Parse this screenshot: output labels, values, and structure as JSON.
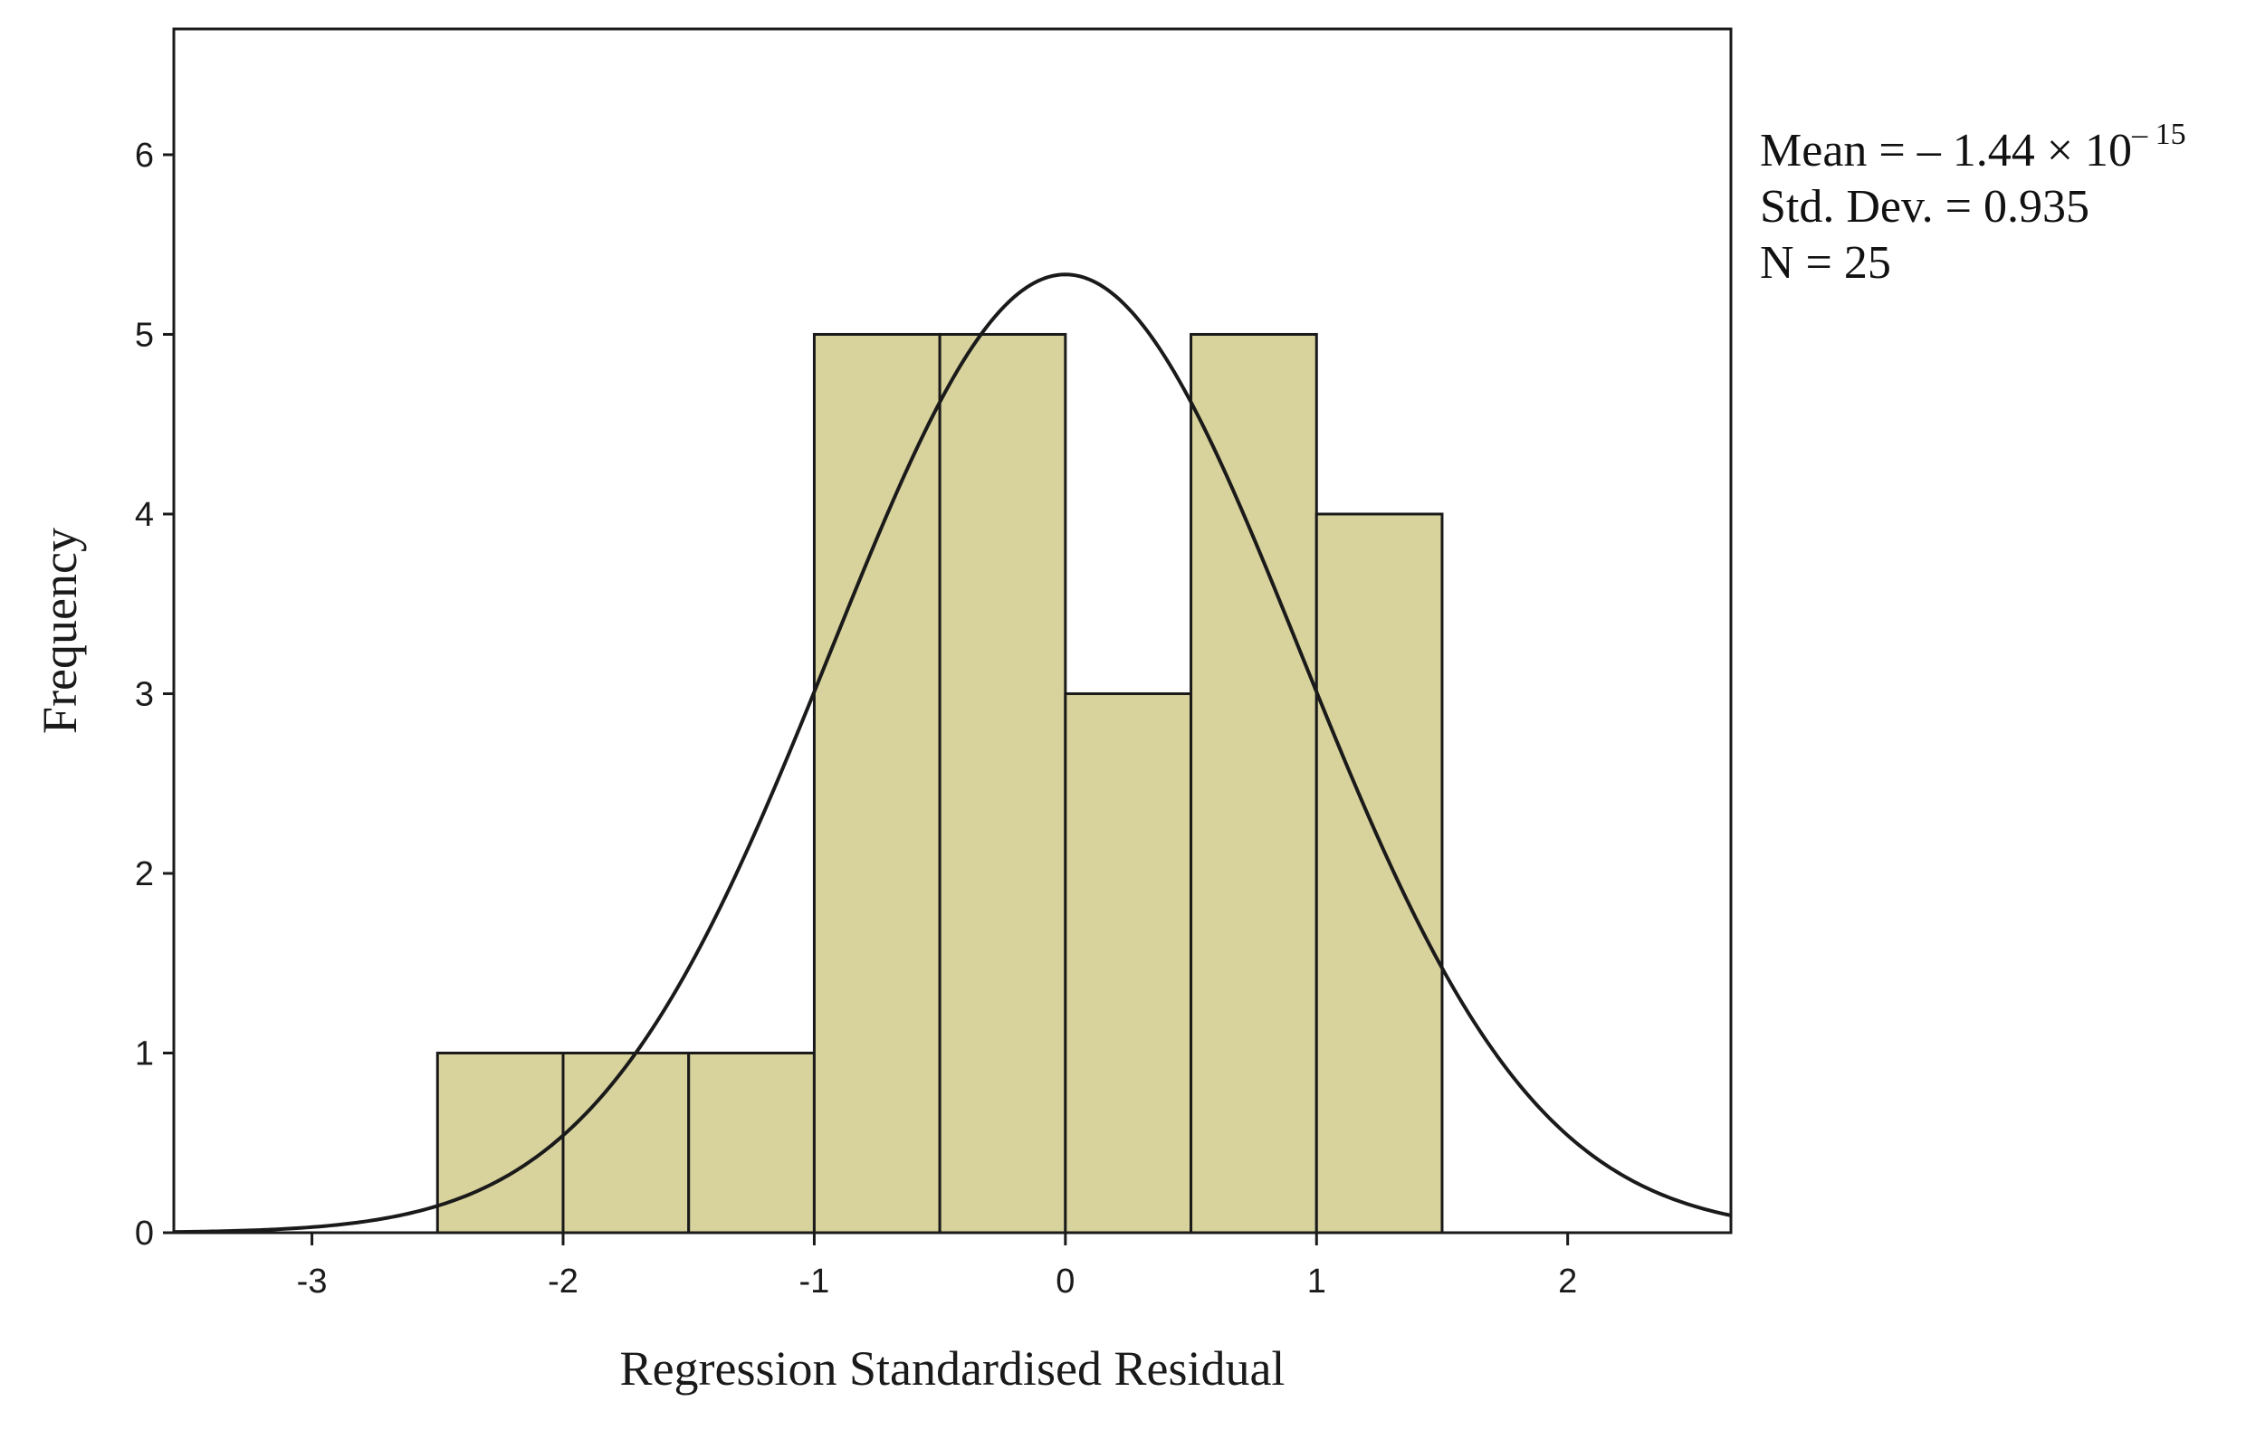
{
  "chart_data": {
    "type": "bar",
    "subtype": "histogram",
    "xlabel": "Regression Standardised Residual",
    "ylabel": "Frequency",
    "xlim": [
      -3.55,
      2.65
    ],
    "ylim": [
      0,
      6.7
    ],
    "xticks": [
      -3,
      -2,
      -1,
      0,
      1,
      2
    ],
    "yticks": [
      0,
      1,
      2,
      3,
      4,
      5,
      6
    ],
    "bins": [
      {
        "start": -2.5,
        "end": -2.0,
        "value": 1
      },
      {
        "start": -2.0,
        "end": -1.5,
        "value": 1
      },
      {
        "start": -1.5,
        "end": -1.0,
        "value": 1
      },
      {
        "start": -1.0,
        "end": -0.5,
        "value": 5
      },
      {
        "start": -0.5,
        "end": 0.0,
        "value": 5
      },
      {
        "start": 0.0,
        "end": 0.5,
        "value": 3
      },
      {
        "start": 0.5,
        "end": 1.0,
        "value": 5
      },
      {
        "start": 1.0,
        "end": 1.5,
        "value": 4
      }
    ],
    "bar_color": "#d8d29c",
    "bar_edge_color": "#1a1a1a",
    "normal_curve": {
      "mean": 0,
      "std_dev": 0.935,
      "n": 25,
      "bin_width": 0.5
    },
    "curve_color": "#1a1a1a"
  },
  "stats": {
    "mean_prefix": "Mean = ",
    "mean_sign": "–",
    "mean_value": " 1.44 × 10",
    "mean_exponent": "– 15",
    "std_dev": "Std. Dev. = 0.935",
    "n": "N = 25"
  }
}
